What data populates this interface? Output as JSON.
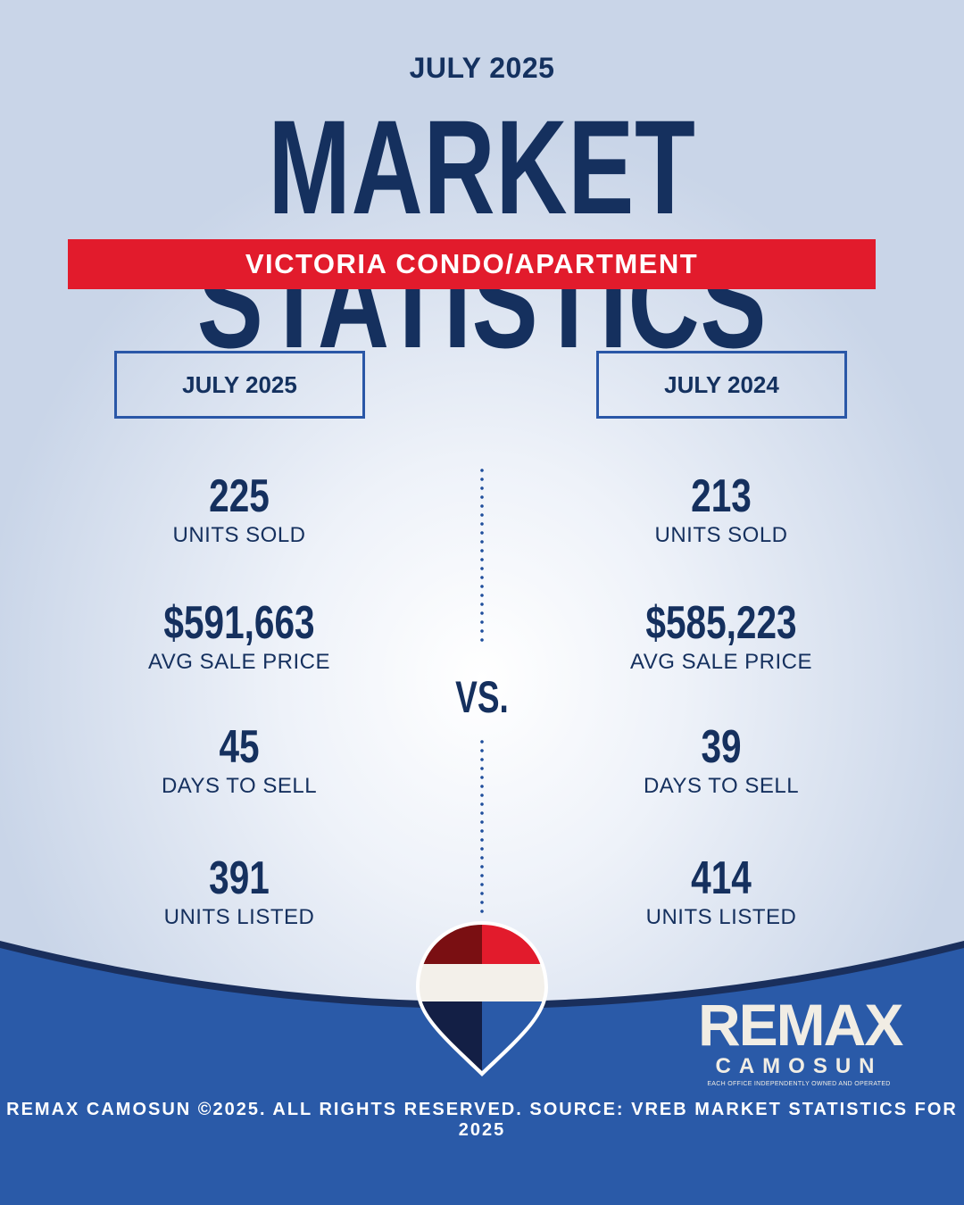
{
  "header": {
    "month": "JULY 2025",
    "title": "MARKET STATISTICS",
    "banner": "VICTORIA CONDO/APARTMENT"
  },
  "columns": [
    {
      "label": "JULY 2025",
      "stats": [
        {
          "value": "225",
          "label": "UNITS SOLD"
        },
        {
          "value": "$591,663",
          "label": "AVG SALE PRICE"
        },
        {
          "value": "45",
          "label": "DAYS TO SELL"
        },
        {
          "value": "391",
          "label": "UNITS LISTED"
        }
      ]
    },
    {
      "label": "JULY 2024",
      "stats": [
        {
          "value": "213",
          "label": "UNITS SOLD"
        },
        {
          "value": "$585,223",
          "label": "AVG SALE PRICE"
        },
        {
          "value": "39",
          "label": "DAYS TO SELL"
        },
        {
          "value": "414",
          "label": "UNITS LISTED"
        }
      ]
    }
  ],
  "vs": "VS.",
  "brand": {
    "name": "REMAX",
    "sub": "CAMOSUN",
    "tagline": "EACH OFFICE INDEPENDENTLY OWNED AND OPERATED"
  },
  "footer": "REMAX CAMOSUN ©2025. ALL RIGHTS RESERVED. SOURCE: VREB MARKET STATISTICS FOR 2025",
  "colors": {
    "navy": "#15305e",
    "red": "#e21b2c",
    "blue": "#2a57a7"
  },
  "icons": [
    "balloon-logo-icon"
  ]
}
